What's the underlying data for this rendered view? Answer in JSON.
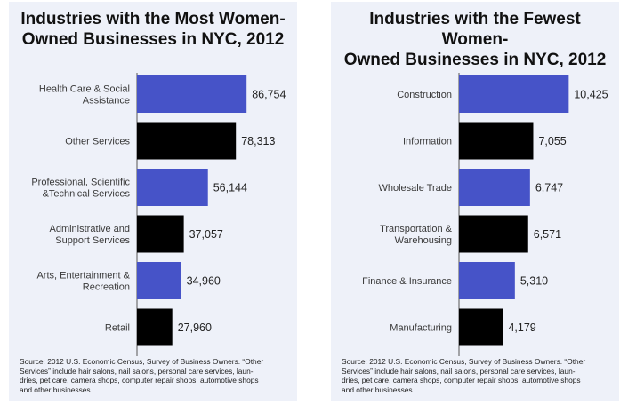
{
  "colors": {
    "blue": "#4653c8",
    "black": "#000000",
    "axis": "#555555",
    "panel_bg": "#eef1f9"
  },
  "left_panel": {
    "title_line1": "Industries with the Most Women-",
    "title_line2": "Owned Businesses in NYC, 2012",
    "source_line1": "Source: 2012 U.S. Economic Census, Survey of Business Owners. “Other",
    "source_line2": "Services” include hair salons, nail salons, personal care services, laun-",
    "source_line3": "dries, pet care, camera shops, computer repair shops, automotive shops",
    "source_line4": "and other businesses."
  },
  "right_panel": {
    "title_line1": "Industries with the Fewest Women-",
    "title_line2": "Owned Businesses in NYC, 2012",
    "source_line1": "Source: 2012 U.S. Economic Census, Survey of Business Owners. “Other",
    "source_line2": "Services” include hair salons, nail salons, personal care services, laun-",
    "source_line3": "dries, pet care, camera shops, computer repair shops, automotive shops",
    "source_line4": "and other businesses."
  },
  "chart_data": [
    {
      "type": "bar",
      "orientation": "horizontal",
      "title": "Industries with the Most Women-Owned Businesses in NYC, 2012",
      "categories": [
        [
          "Health Care & Social",
          "Assistance"
        ],
        [
          "Other Services"
        ],
        [
          "Professional, Scientific",
          "&Technical Services"
        ],
        [
          "Administrative and",
          "Support Services"
        ],
        [
          "Arts, Entertainment &",
          "Recreation"
        ],
        [
          "Retail"
        ]
      ],
      "values": [
        86754,
        78313,
        56144,
        37057,
        34960,
        27960
      ],
      "value_labels": [
        "86,754",
        "78,313",
        "56,144",
        "37,057",
        "34,960",
        "27,960"
      ],
      "bar_colors": [
        "blue",
        "black",
        "blue",
        "black",
        "blue",
        "black"
      ],
      "xlim": [
        0,
        100000
      ],
      "grid": false,
      "legend": "none"
    },
    {
      "type": "bar",
      "orientation": "horizontal",
      "title": "Industries with the Fewest Women-Owned Businesses in NYC, 2012",
      "categories": [
        [
          "Construction"
        ],
        [
          "Information"
        ],
        [
          "Wholesale Trade"
        ],
        [
          "Transportation &",
          "Warehousing"
        ],
        [
          "Finance & Insurance"
        ],
        [
          "Manufacturing"
        ]
      ],
      "values": [
        10425,
        7055,
        6747,
        6571,
        5310,
        4179
      ],
      "value_labels": [
        "10,425",
        "7,055",
        "6,747",
        "6,571",
        "5,310",
        "4,179"
      ],
      "bar_colors": [
        "blue",
        "black",
        "blue",
        "black",
        "blue",
        "black"
      ],
      "xlim": [
        0,
        12000
      ],
      "grid": false,
      "legend": "none"
    }
  ]
}
